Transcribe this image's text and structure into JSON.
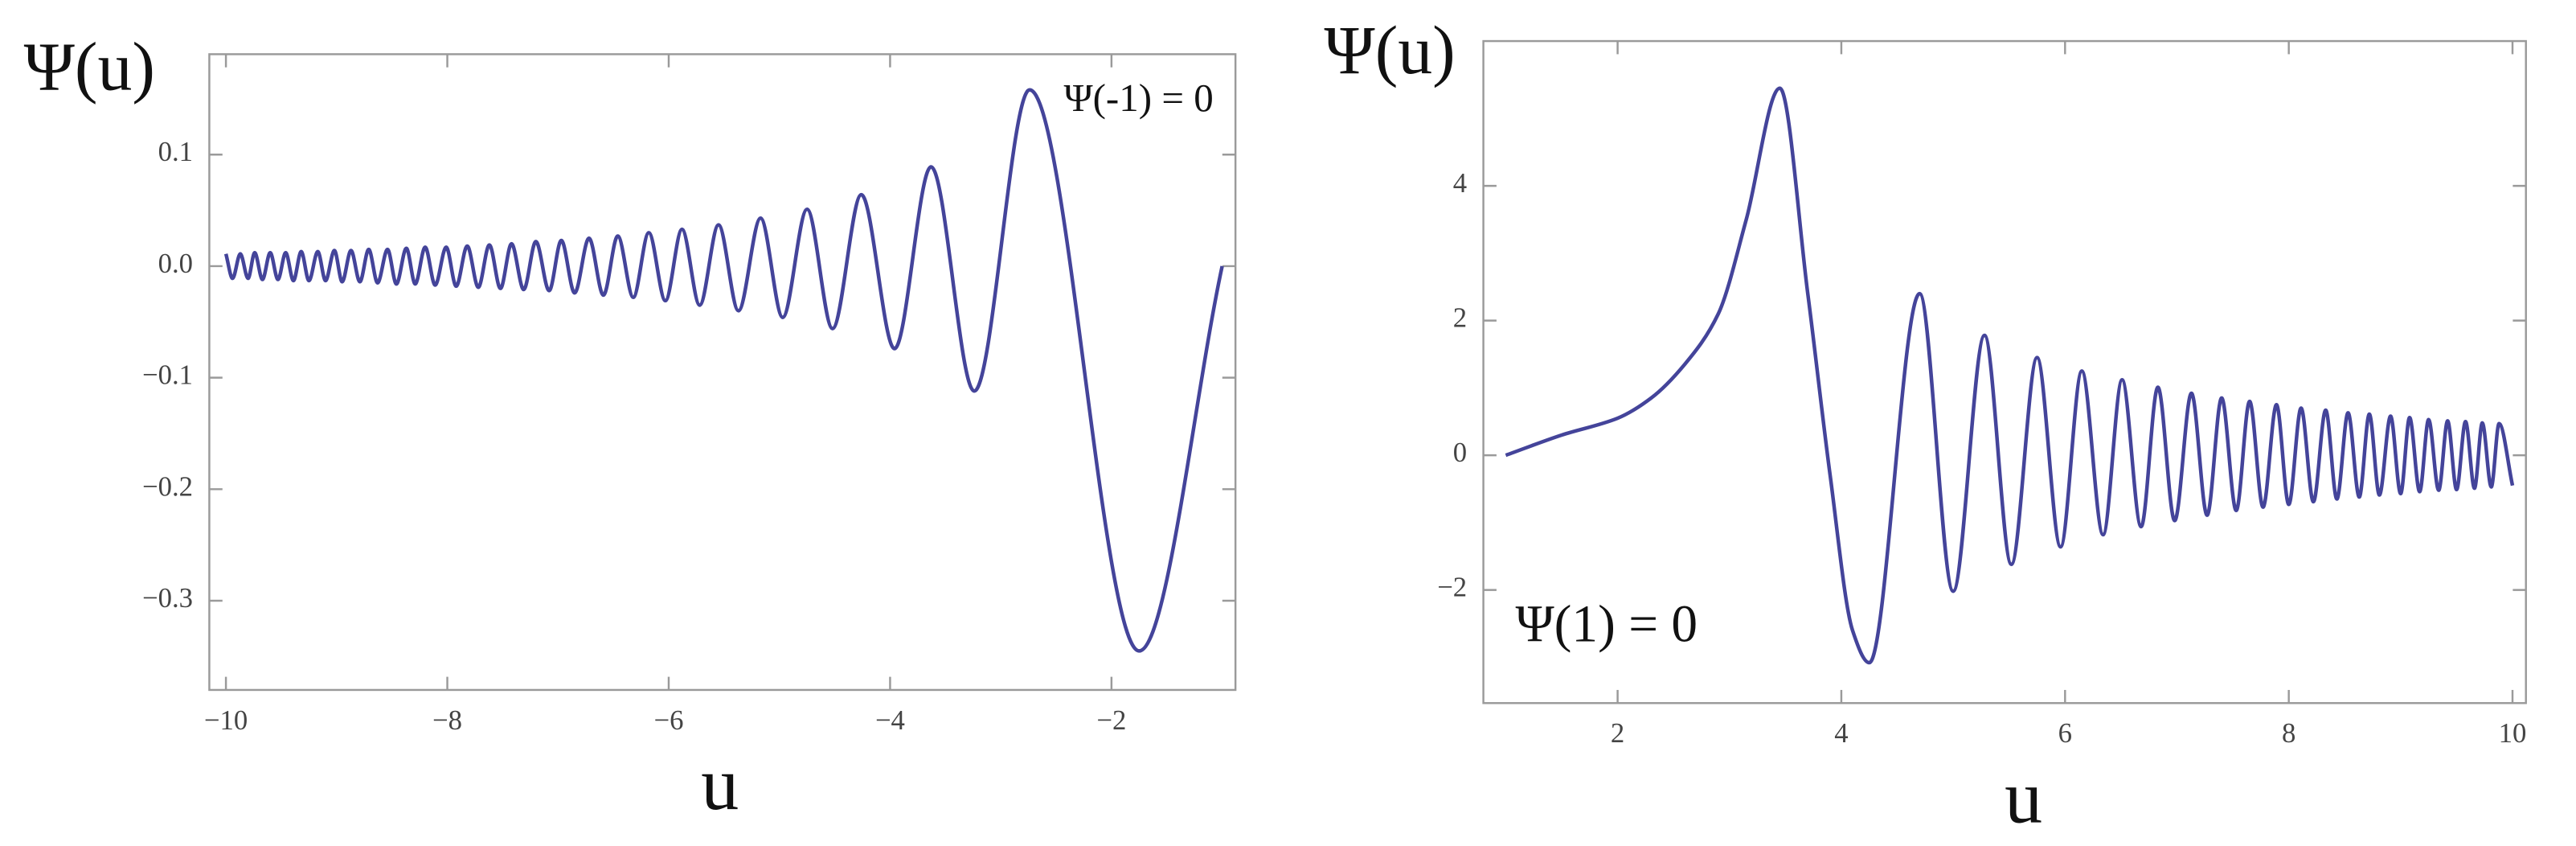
{
  "chart_data": [
    {
      "type": "line",
      "y_label": "Ψ(u)",
      "x_label": "u",
      "annotation": "Ψ(-1) = 0",
      "color": "#44449a",
      "x": [
        -10.0,
        -9.94,
        -9.87,
        -9.8,
        -9.74,
        -9.67,
        -9.6,
        -9.53,
        -9.46,
        -9.39,
        -9.32,
        -9.25,
        -9.17,
        -9.1,
        -9.02,
        -8.95,
        -8.87,
        -8.79,
        -8.71,
        -8.63,
        -8.54,
        -8.46,
        -8.37,
        -8.29,
        -8.2,
        -8.11,
        -8.01,
        -7.92,
        -7.82,
        -7.72,
        -7.62,
        -7.52,
        -7.42,
        -7.31,
        -7.2,
        -7.08,
        -6.97,
        -6.85,
        -6.72,
        -6.59,
        -6.46,
        -6.32,
        -6.18,
        -6.03,
        -5.88,
        -5.72,
        -5.55,
        -5.37,
        -5.17,
        -4.97,
        -4.75,
        -4.52,
        -4.26,
        -3.96,
        -3.63,
        -3.24,
        -2.74,
        -1.75,
        -1.0
      ],
      "values": [
        0.011,
        -0.011,
        0.011,
        -0.011,
        0.012,
        -0.012,
        0.012,
        -0.012,
        0.012,
        -0.013,
        0.013,
        -0.013,
        0.013,
        -0.013,
        0.014,
        -0.014,
        0.014,
        -0.014,
        0.015,
        -0.015,
        0.015,
        -0.016,
        0.016,
        -0.016,
        0.017,
        -0.017,
        0.017,
        -0.018,
        0.018,
        -0.019,
        0.019,
        -0.02,
        0.02,
        -0.021,
        0.022,
        -0.022,
        0.023,
        -0.024,
        0.025,
        -0.026,
        0.027,
        -0.028,
        0.03,
        -0.031,
        0.033,
        -0.035,
        0.037,
        -0.04,
        0.043,
        -0.046,
        0.051,
        -0.056,
        0.064,
        -0.074,
        0.089,
        -0.112,
        0.158,
        -0.345,
        0.0
      ],
      "xlim": [
        -10.15,
        -0.88
      ],
      "ylim": [
        -0.38,
        0.19
      ],
      "xticks": [
        {
          "value": -10,
          "label": "−10"
        },
        {
          "value": -8,
          "label": "−8"
        },
        {
          "value": -6,
          "label": "−6"
        },
        {
          "value": -4,
          "label": "−4"
        },
        {
          "value": -2,
          "label": "−2"
        }
      ],
      "yticks": [
        0.1,
        {
          "value": 0,
          "label": "0.0"
        },
        {
          "value": -0.1,
          "label": "−0.1"
        },
        {
          "value": -0.2,
          "label": "−0.2"
        },
        {
          "value": -0.3,
          "label": "−0.3"
        }
      ]
    },
    {
      "type": "line",
      "y_label": "Ψ(u)",
      "x_label": "u",
      "annotation": "Ψ(1) = 0",
      "color": "#44449a",
      "x": [
        1.0,
        1.5,
        2.0,
        2.3,
        2.6,
        2.9,
        3.15,
        3.45,
        3.7,
        3.9,
        4.1,
        4.25,
        4.7,
        5.0,
        5.28,
        5.52,
        5.75,
        5.96,
        6.15,
        6.34,
        6.51,
        6.68,
        6.83,
        6.98,
        7.13,
        7.27,
        7.4,
        7.53,
        7.65,
        7.77,
        7.89,
        8.0,
        8.11,
        8.22,
        8.33,
        8.43,
        8.53,
        8.63,
        8.72,
        8.81,
        8.91,
        9.0,
        9.08,
        9.17,
        9.25,
        9.34,
        9.42,
        9.5,
        9.58,
        9.66,
        9.73,
        9.81,
        9.88,
        10.0
      ],
      "values": [
        0,
        0.3,
        0.55,
        0.85,
        1.35,
        2.1,
        3.5,
        5.45,
        2.4,
        -0.3,
        -2.6,
        -3.08,
        2.4,
        -2.02,
        1.78,
        -1.62,
        1.45,
        -1.36,
        1.25,
        -1.18,
        1.12,
        -1.06,
        1.01,
        -0.97,
        0.92,
        -0.89,
        0.85,
        -0.82,
        0.8,
        -0.77,
        0.75,
        -0.73,
        0.7,
        -0.69,
        0.67,
        -0.65,
        0.63,
        -0.62,
        0.61,
        -0.59,
        0.58,
        -0.57,
        0.56,
        -0.54,
        0.53,
        -0.52,
        0.51,
        -0.51,
        0.5,
        -0.49,
        0.48,
        -0.47,
        0.47,
        -0.45
      ],
      "xlim": [
        0.8,
        10.12
      ],
      "ylim": [
        -3.68,
        6.15
      ],
      "xticks": [
        2,
        4,
        6,
        8,
        10
      ],
      "yticks": [
        {
          "value": -2,
          "label": "−2"
        },
        0,
        2,
        4
      ]
    }
  ]
}
